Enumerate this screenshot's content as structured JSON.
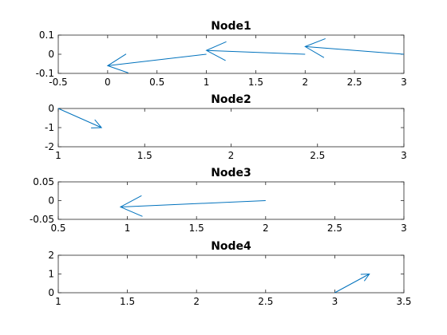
{
  "figure": {
    "background": "#ffffff",
    "series_color": "#0072bd"
  },
  "chart_data": [
    {
      "type": "quiver",
      "title": "Node1",
      "xlim": [
        -0.5,
        3
      ],
      "ylim": [
        -0.1,
        0.1
      ],
      "xticks": [
        -0.5,
        0,
        0.5,
        1,
        1.5,
        2,
        2.5,
        3
      ],
      "xtick_labels": [
        "-0.5",
        "0",
        "0.5",
        "1",
        "1.5",
        "2",
        "2.5",
        "3"
      ],
      "yticks": [
        -0.1,
        0,
        0.1
      ],
      "ytick_labels": [
        "-0.1",
        "0",
        "0.1"
      ],
      "vectors": [
        {
          "x": 3,
          "y": 0,
          "u": -1,
          "v": 0.04
        },
        {
          "x": 2,
          "y": 0,
          "u": -1,
          "v": 0.02
        },
        {
          "x": 1,
          "y": 0,
          "u": -1,
          "v": -0.06
        }
      ]
    },
    {
      "type": "quiver",
      "title": "Node2",
      "xlim": [
        1,
        3
      ],
      "ylim": [
        -2,
        0
      ],
      "xticks": [
        1,
        1.5,
        2,
        2.5,
        3
      ],
      "xtick_labels": [
        "1",
        "1.5",
        "2",
        "2.5",
        "3"
      ],
      "yticks": [
        -2,
        -1,
        0
      ],
      "ytick_labels": [
        "-2",
        "-1",
        "0"
      ],
      "vectors": [
        {
          "x": 1,
          "y": 0,
          "u": 0.25,
          "v": -1
        }
      ]
    },
    {
      "type": "quiver",
      "title": "Node3",
      "xlim": [
        0.5,
        3
      ],
      "ylim": [
        -0.05,
        0.05
      ],
      "xticks": [
        0.5,
        1,
        1.5,
        2,
        2.5,
        3
      ],
      "xtick_labels": [
        "0.5",
        "1",
        "1.5",
        "2",
        "2.5",
        "3"
      ],
      "yticks": [
        -0.05,
        0,
        0.05
      ],
      "ytick_labels": [
        "-0.05",
        "0",
        "0.05"
      ],
      "vectors": [
        {
          "x": 2,
          "y": 0,
          "u": -1.05,
          "v": -0.017
        }
      ]
    },
    {
      "type": "quiver",
      "title": "Node4",
      "xlim": [
        1,
        3.5
      ],
      "ylim": [
        0,
        2
      ],
      "xticks": [
        1,
        1.5,
        2,
        2.5,
        3,
        3.5
      ],
      "xtick_labels": [
        "1",
        "1.5",
        "2",
        "2.5",
        "3",
        "3.5"
      ],
      "yticks": [
        0,
        1,
        2
      ],
      "ytick_labels": [
        "0",
        "1",
        "2"
      ],
      "vectors": [
        {
          "x": 3,
          "y": 0,
          "u": 0.25,
          "v": 1
        }
      ]
    }
  ]
}
